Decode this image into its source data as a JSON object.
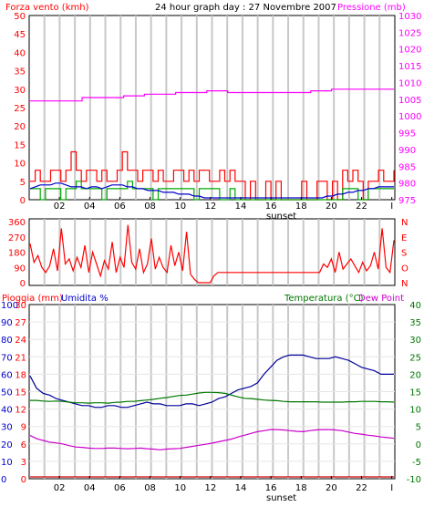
{
  "chart_data": [
    {
      "type": "line",
      "panel": "wind-pressure",
      "title": "24 hour graph day : 27 Novembre 2007",
      "left_label": "Forza vento (kmh)",
      "right_label": "Pressione (mb)",
      "ylim_left": [
        0,
        50
      ],
      "ylim_right": [
        975,
        1030
      ],
      "left_ticks": [
        "0",
        "5",
        "10",
        "15",
        "20",
        "25",
        "30",
        "35",
        "40",
        "45",
        "50"
      ],
      "right_ticks": [
        "975",
        "980",
        "985",
        "990",
        "995",
        "1000",
        "1005",
        "1010",
        "1015",
        "1020",
        "1025",
        "1030"
      ],
      "x_ticks": [
        "02",
        "04",
        "06",
        "08",
        "10",
        "12",
        "14",
        "16",
        "18",
        "20",
        "22",
        "I"
      ],
      "x_marker": "sunset",
      "grid": true,
      "colors": {
        "wind_gust": "#ff0000",
        "wind_avg": "#00aa00",
        "wind_dir_line": "#0000cc",
        "pressure": "#ff00ff",
        "grid": "#c8c8c8",
        "left_axis": "#ff0000",
        "right_axis": "#ff00ff"
      },
      "series": [
        {
          "role": "pressure",
          "axis": "right",
          "values": [
            1004.5,
            1004.5,
            1004.5,
            1004.5,
            1004.5,
            1005.5,
            1005.5,
            1005.5,
            1005.5,
            1006,
            1006,
            1006.5,
            1006.5,
            1006.5,
            1007,
            1007,
            1007,
            1007.5,
            1007.5,
            1007,
            1007,
            1007,
            1007,
            1007,
            1007,
            1007,
            1007,
            1007.5,
            1007.5,
            1008,
            1008,
            1008,
            1008,
            1008,
            1008,
            1008
          ]
        },
        {
          "role": "wind_gust",
          "axis": "left",
          "values": [
            5,
            8,
            5,
            5,
            8,
            8,
            5,
            8,
            13,
            8,
            5,
            8,
            8,
            5,
            8,
            5,
            5,
            8,
            13,
            8,
            8,
            5,
            8,
            8,
            5,
            8,
            5,
            5,
            8,
            8,
            5,
            8,
            5,
            8,
            8,
            5,
            5,
            8,
            5,
            8,
            5,
            5,
            0,
            5,
            0,
            0,
            5,
            0,
            5,
            0,
            0,
            0,
            0,
            5,
            0,
            0,
            5,
            5,
            0,
            5,
            0,
            8,
            5,
            8,
            5,
            0,
            5,
            5,
            8,
            5,
            5,
            8
          ]
        },
        {
          "role": "wind_avg",
          "axis": "left",
          "values": [
            3,
            3,
            0,
            3,
            3,
            3,
            0,
            3,
            3,
            5,
            3,
            3,
            3,
            3,
            0,
            3,
            3,
            3,
            3,
            5,
            3,
            3,
            3,
            3,
            0,
            3,
            3,
            3,
            3,
            3,
            3,
            3,
            0,
            3,
            3,
            3,
            3,
            0,
            0,
            3,
            0,
            0,
            0,
            0,
            0,
            0,
            0,
            0,
            0,
            0,
            0,
            0,
            0,
            0,
            0,
            0,
            0,
            0,
            0,
            0,
            0,
            3,
            3,
            3,
            0,
            0,
            3,
            3,
            3,
            3,
            3,
            3
          ]
        },
        {
          "role": "wind_dir_line",
          "axis": "left",
          "values": [
            3,
            3.5,
            4,
            4,
            4,
            4.5,
            4.5,
            4,
            3.5,
            3.5,
            3.5,
            3,
            3.5,
            3.5,
            3,
            3.5,
            4,
            4,
            4,
            3.5,
            3.5,
            3,
            3,
            2.5,
            2.5,
            2.5,
            2,
            2,
            2,
            1.5,
            1.5,
            1.5,
            1,
            1,
            0.5,
            0.5,
            0.5,
            0.5,
            0.5,
            0.5,
            0.5,
            0.5,
            0.5,
            0.5,
            0.5,
            0.5,
            0.5,
            0.5,
            0.5,
            0.5,
            0.5,
            0.5,
            0.5,
            0.5,
            0.5,
            0.5,
            0.5,
            0.5,
            1,
            1,
            1.5,
            1.5,
            2,
            2,
            2.5,
            2.5,
            3,
            3,
            3.5,
            3.5,
            3.5,
            3.5
          ]
        }
      ]
    },
    {
      "type": "line",
      "panel": "wind-direction",
      "ylim": [
        0,
        360
      ],
      "left_ticks": [
        "0",
        "90",
        "180",
        "270",
        "360"
      ],
      "right_labels": [
        "N",
        "E",
        "S",
        "O",
        "N"
      ],
      "right_values": [
        360,
        270,
        180,
        90,
        0
      ],
      "x_ticks": [],
      "grid": true,
      "colors": {
        "line": "#ff0000",
        "right_labels": "#ff0000"
      },
      "series": [
        {
          "role": "direction",
          "values": [
            230,
            120,
            160,
            90,
            60,
            100,
            200,
            70,
            320,
            110,
            140,
            70,
            150,
            90,
            220,
            60,
            180,
            110,
            40,
            130,
            80,
            240,
            60,
            150,
            90,
            340,
            120,
            80,
            200,
            60,
            110,
            260,
            80,
            150,
            90,
            60,
            220,
            100,
            180,
            70,
            300,
            50,
            20,
            0,
            0,
            0,
            0,
            40,
            60,
            60,
            60,
            60,
            60,
            60,
            60,
            60,
            60,
            60,
            60,
            60,
            60,
            60,
            60,
            60,
            60,
            60,
            60,
            60,
            60,
            60,
            60,
            60,
            60,
            60,
            60,
            110,
            90,
            140,
            60,
            180,
            80,
            110,
            140,
            100,
            60,
            120,
            70,
            100,
            180,
            80,
            320,
            90,
            60,
            250
          ]
        }
      ]
    },
    {
      "type": "line",
      "panel": "rain-humidity-temperature",
      "left_label_1": "Pioggia (mm)",
      "left_label_2": "Umidita %",
      "right_label_1": "Temperatura (°C)",
      "right_label_2": "Dew Point",
      "ylim_humidity": [
        0,
        100
      ],
      "ylim_rain": [
        0,
        30
      ],
      "ylim_temp": [
        -10,
        40
      ],
      "humidity_ticks": [
        "0",
        "10",
        "20",
        "30",
        "40",
        "50",
        "60",
        "70",
        "80",
        "90",
        "100"
      ],
      "rain_ticks": [
        "0",
        "3",
        "6",
        "9",
        "12",
        "15",
        "18",
        "21",
        "24",
        "27",
        "30"
      ],
      "temp_ticks": [
        "-10",
        "-5",
        "0",
        "5",
        "10",
        "15",
        "20",
        "25",
        "30",
        "35",
        "40"
      ],
      "x_ticks": [
        "02",
        "04",
        "06",
        "08",
        "10",
        "12",
        "14",
        "16",
        "18",
        "20",
        "22",
        "I"
      ],
      "x_marker": "sunset",
      "grid": true,
      "colors": {
        "humidity": "#000099",
        "temperature": "#007700",
        "dew_point": "#cc00cc",
        "rain": "#cc0000",
        "left_axis_1": "#ff0000",
        "left_axis_2": "#0000cc",
        "right_axis": "#007700"
      },
      "series": [
        {
          "role": "humidity",
          "axis": "humidity",
          "values": [
            59,
            52,
            49,
            48,
            46,
            45,
            44,
            43,
            42,
            42,
            41,
            41,
            42,
            42,
            41,
            41,
            42,
            43,
            44,
            43,
            43,
            42,
            42,
            42,
            43,
            43,
            42,
            43,
            44,
            46,
            47,
            49,
            51,
            52,
            53,
            55,
            60,
            64,
            68,
            70,
            71,
            71,
            71,
            70,
            69,
            69,
            69,
            70,
            69,
            68,
            66,
            64,
            63,
            62,
            60,
            60,
            60
          ]
        },
        {
          "role": "temperature",
          "axis": "temp",
          "values": [
            12.5,
            12.5,
            12.3,
            12.2,
            12.3,
            12.2,
            12,
            11.8,
            11.8,
            11.7,
            11.8,
            11.8,
            11.7,
            11.9,
            12,
            12.2,
            12.2,
            12.4,
            12.6,
            12.8,
            13.1,
            13.3,
            13.6,
            13.9,
            14,
            14.3,
            14.6,
            14.8,
            14.8,
            14.7,
            14.5,
            14,
            13.5,
            13.1,
            13,
            12.8,
            12.6,
            12.5,
            12.4,
            12.2,
            12.1,
            12.1,
            12.1,
            12.1,
            12.1,
            12,
            12,
            12,
            12,
            12.1,
            12.1,
            12.2,
            12.2,
            12.2,
            12.1,
            12.1,
            12
          ]
        },
        {
          "role": "dew_point",
          "axis": "temp",
          "values": [
            2.4,
            1.5,
            1,
            0.5,
            0.3,
            0,
            -0.5,
            -0.9,
            -1,
            -1.2,
            -1.3,
            -1.3,
            -1.2,
            -1.2,
            -1.3,
            -1.4,
            -1.3,
            -1.2,
            -1.4,
            -1.5,
            -1.7,
            -1.5,
            -1.4,
            -1.3,
            -1,
            -0.7,
            -0.4,
            -0.1,
            0.2,
            0.6,
            1,
            1.4,
            2,
            2.5,
            3,
            3.5,
            3.8,
            4.1,
            4.1,
            4,
            3.8,
            3.6,
            3.5,
            3.8,
            4,
            4.1,
            4.1,
            4,
            3.8,
            3.4,
            3,
            2.8,
            2.5,
            2.3,
            2,
            1.8,
            1.6
          ]
        },
        {
          "role": "rain",
          "axis": "rain",
          "values": [
            0,
            0
          ]
        }
      ]
    }
  ]
}
